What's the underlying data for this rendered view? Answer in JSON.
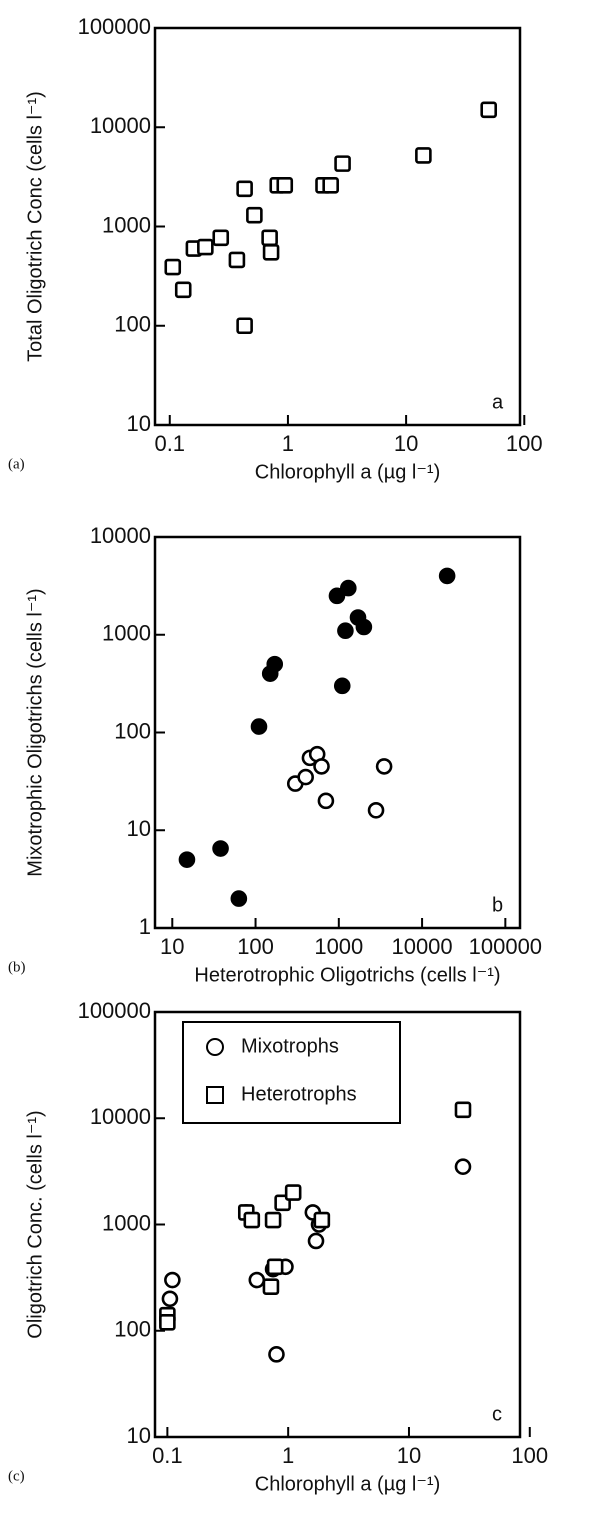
{
  "chart_data": [
    {
      "type": "scatter",
      "panel_label": "(a)",
      "annotation": "a",
      "xlabel": "Chlorophyll a (µg l⁻¹)",
      "ylabel": "Total Oligotrich Conc (cells l⁻¹)",
      "xscale": "log",
      "yscale": "log",
      "xlim": [
        0.075,
        92
      ],
      "ylim": [
        10,
        100000
      ],
      "xticks": [
        0.1,
        1,
        10,
        100
      ],
      "yticks": [
        10,
        100,
        1000,
        10000,
        100000
      ],
      "series": [
        {
          "marker": "square",
          "color": "#000000",
          "filled": false,
          "x": [
            0.106,
            0.13,
            0.16,
            0.2,
            0.27,
            0.37,
            0.43,
            0.52,
            0.7,
            0.72,
            0.43,
            0.82,
            0.94,
            2.0,
            2.3,
            2.9,
            14,
            50
          ],
          "values": [
            390,
            230,
            600,
            620,
            770,
            460,
            2400,
            1300,
            770,
            550,
            100,
            2600,
            2600,
            2600,
            2600,
            4300,
            5200,
            15000
          ]
        }
      ]
    },
    {
      "type": "scatter",
      "panel_label": "(b)",
      "annotation": "b",
      "xlabel": "Heterotrophic Oligotrichs (cells l⁻¹)",
      "ylabel": "Mixotrophic Oligotrichs (cells l⁻¹)",
      "xscale": "log",
      "yscale": "log",
      "xlim": [
        6.2,
        150000
      ],
      "ylim": [
        1,
        10000
      ],
      "xticks": [
        10,
        100,
        1000,
        10000,
        100000
      ],
      "yticks": [
        1,
        10,
        100,
        1000,
        10000
      ],
      "series": [
        {
          "marker": "circle",
          "color": "#000000",
          "filled": true,
          "x": [
            15,
            38,
            63,
            110,
            150,
            170,
            950,
            1300,
            1700,
            2000,
            1200,
            1100,
            20000
          ],
          "values": [
            5,
            6.5,
            2,
            115,
            400,
            500,
            2500,
            3000,
            1500,
            1200,
            1100,
            300,
            4000
          ]
        },
        {
          "marker": "circle",
          "color": "#000000",
          "filled": false,
          "x": [
            450,
            550,
            620,
            300,
            400,
            700,
            3500,
            2800
          ],
          "values": [
            55,
            60,
            45,
            30,
            35,
            20,
            45,
            16
          ]
        }
      ]
    },
    {
      "type": "scatter",
      "panel_label": "(c)",
      "annotation": "c",
      "xlabel": "Chlorophyll a (µg l⁻¹)",
      "ylabel": "Oligotrich Conc. (cells l⁻¹)",
      "xscale": "log",
      "yscale": "log",
      "xlim": [
        0.079,
        83
      ],
      "ylim": [
        10,
        100000
      ],
      "xticks": [
        0.1,
        1,
        10,
        100
      ],
      "yticks": [
        10,
        100,
        1000,
        10000,
        100000
      ],
      "legend": "upper left",
      "series": [
        {
          "name": "Mixotrophs",
          "marker": "circle",
          "color": "#000000",
          "filled": false,
          "x": [
            0.11,
            0.105,
            0.55,
            0.75,
            0.8,
            0.95,
            1.6,
            1.7,
            1.8,
            0.45,
            28
          ],
          "values": [
            300,
            200,
            300,
            380,
            60,
            400,
            1300,
            700,
            1000,
            1300,
            3500
          ]
        },
        {
          "name": "Heterotrophs",
          "marker": "square",
          "color": "#000000",
          "filled": false,
          "x": [
            0.1,
            0.1,
            0.45,
            0.5,
            0.75,
            0.78,
            0.72,
            0.9,
            1.1,
            1.9,
            28
          ],
          "values": [
            140,
            120,
            1300,
            1100,
            1100,
            400,
            260,
            1600,
            2000,
            1100,
            12000
          ]
        }
      ]
    }
  ]
}
